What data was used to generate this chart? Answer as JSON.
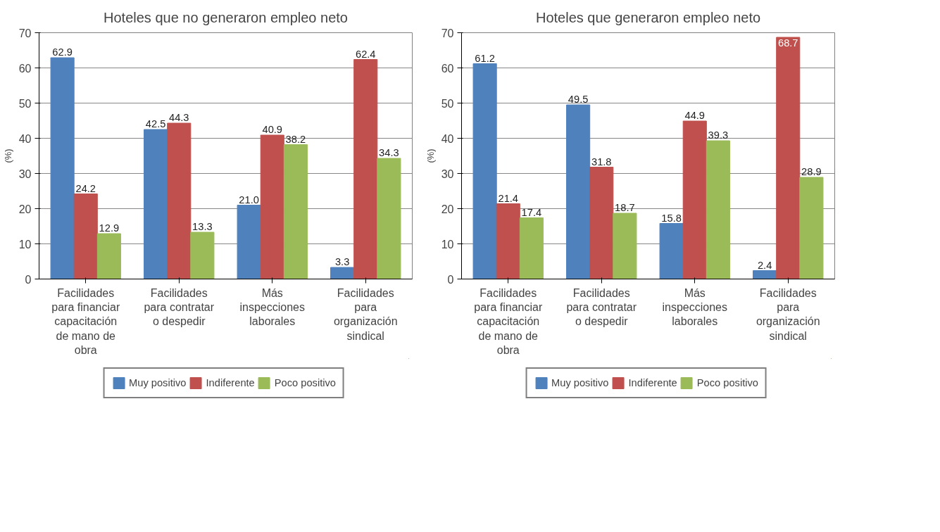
{
  "chart_data": [
    {
      "type": "bar",
      "title": "Hoteles que no generaron empleo neto",
      "ylabel": "(%)",
      "categories": [
        "Facilidades para financiar capacitación de mano de obra",
        "Facilidades para contratar o despedir",
        "Más inspecciones laborales",
        "Facilidades para organización sindical"
      ],
      "series": [
        {
          "name": "Muy positivo",
          "color": "#4f81bd",
          "values": [
            62.9,
            42.5,
            21.0,
            3.3
          ],
          "value_labels": [
            "62.9",
            "42.5",
            "21.0",
            "3.3"
          ]
        },
        {
          "name": "Indiferente",
          "color": "#c0504d",
          "values": [
            24.2,
            44.3,
            40.9,
            62.4
          ],
          "value_labels": [
            "24.2",
            "44.3",
            "40.9",
            "62.4"
          ]
        },
        {
          "name": "Poco positivo",
          "color": "#9bbb59",
          "values": [
            12.9,
            13.3,
            38.2,
            34.3
          ],
          "value_labels": [
            "12.9",
            "13.3",
            "38.2",
            "34.3"
          ]
        }
      ],
      "ylim": [
        0,
        70
      ],
      "yticks": [
        0,
        10,
        20,
        30,
        40,
        50,
        60,
        70
      ],
      "grid": "y",
      "legend": "bottom"
    },
    {
      "type": "bar",
      "title": "Hoteles que generaron empleo neto",
      "ylabel": "(%)",
      "categories": [
        "Facilidades para financiar capacitación de mano de obra",
        "Facilidades para contratar o despedir",
        "Más inspecciones laborales",
        "Facilidades para organización sindical"
      ],
      "series": [
        {
          "name": "Muy positivo",
          "color": "#4f81bd",
          "values": [
            61.2,
            49.5,
            15.8,
            2.4
          ],
          "value_labels": [
            "61.2",
            "49.5",
            "15.8",
            "2.4"
          ]
        },
        {
          "name": "Indiferente",
          "color": "#c0504d",
          "values": [
            21.4,
            31.8,
            44.9,
            68.7
          ],
          "value_labels": [
            "21.4",
            "31.8",
            "44.9",
            "68.7"
          ]
        },
        {
          "name": "Poco positivo",
          "color": "#9bbb59",
          "values": [
            17.4,
            18.7,
            39.3,
            28.9
          ],
          "value_labels": [
            "17.4",
            "18.7",
            "39.3",
            "28.9"
          ]
        }
      ],
      "ylim": [
        0,
        70
      ],
      "yticks": [
        0,
        10,
        20,
        30,
        40,
        50,
        60,
        70
      ],
      "grid": "y",
      "legend": "bottom"
    }
  ]
}
